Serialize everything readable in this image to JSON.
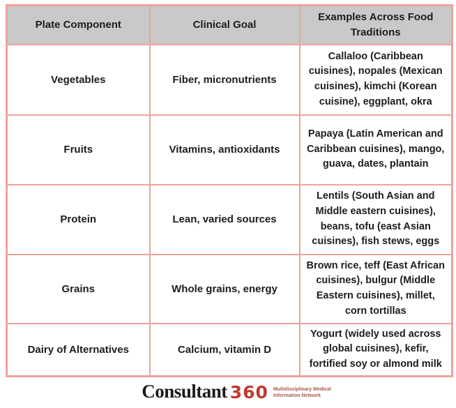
{
  "table": {
    "headers": [
      "Plate Component",
      "Clinical Goal",
      "Examples Across Food Traditions"
    ],
    "rows": [
      {
        "component": "Vegetables",
        "goal": "Fiber, micronutrients",
        "examples": "Callaloo (Caribbean cuisines), nopales (Mexican cuisines), kimchi (Korean cuisine), eggplant, okra"
      },
      {
        "component": "Fruits",
        "goal": "Vitamins, antioxidants",
        "examples": "Papaya (Latin American and Caribbean cuisines), mango, guava, dates, plantain"
      },
      {
        "component": "Protein",
        "goal": "Lean, varied sources",
        "examples": "Lentils (South Asian and Middle eastern cuisines), beans, tofu (east Asian cuisines), fish stews, eggs"
      },
      {
        "component": "Grains",
        "goal": "Whole grains, energy",
        "examples": "Brown rice, teff (East African cuisines), bulgur (Middle Eastern cuisines), millet, corn tortillas"
      },
      {
        "component": "Dairy of Alternatives",
        "goal": "Calcium, vitamin D",
        "examples": "Yogurt (widely used across global cuisines), kefir, fortified soy or almond milk"
      }
    ]
  },
  "logo": {
    "brand_main": "Consultant",
    "brand_number": "360",
    "tagline_line1": "Multidisciplinary Medical",
    "tagline_line2": "Information Network"
  },
  "colors": {
    "border": "#f0a19a",
    "header_bg": "#c9c9c9",
    "text": "#1d1d1d",
    "brand_red": "#c23a31"
  }
}
